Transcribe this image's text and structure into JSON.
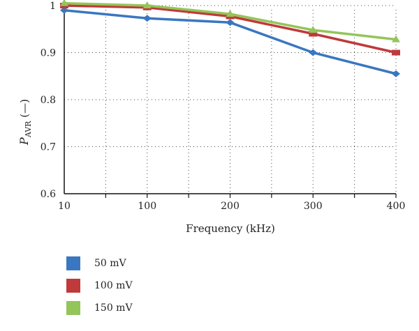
{
  "chart_data": {
    "type": "line",
    "x_categories": [
      "10",
      "100",
      "200",
      "300",
      "400"
    ],
    "xlabel": "Frequency (kHz)",
    "ylabel_main": "P",
    "ylabel_sub": "AVR",
    "ylabel_unit": " (—)",
    "ylim": [
      0.6,
      1.0
    ],
    "yticks": [
      "0.6",
      "0.7",
      "0.8",
      "0.9",
      "1"
    ],
    "ytick_values": [
      0.6,
      0.7,
      0.8,
      0.9,
      1.0
    ],
    "grid": true,
    "legend_position": "bottom-left",
    "series": [
      {
        "name": "50 mV",
        "color": "#3a77c0",
        "marker": "diamond",
        "values": [
          0.99,
          0.973,
          0.964,
          0.9,
          0.855
        ]
      },
      {
        "name": "100 mV",
        "color": "#c0393b",
        "marker": "square",
        "values": [
          1.0,
          0.996,
          0.977,
          0.94,
          0.9
        ]
      },
      {
        "name": "150 mV",
        "color": "#93c559",
        "marker": "triangle",
        "values": [
          1.005,
          1.0,
          0.982,
          0.948,
          0.928
        ]
      }
    ]
  }
}
